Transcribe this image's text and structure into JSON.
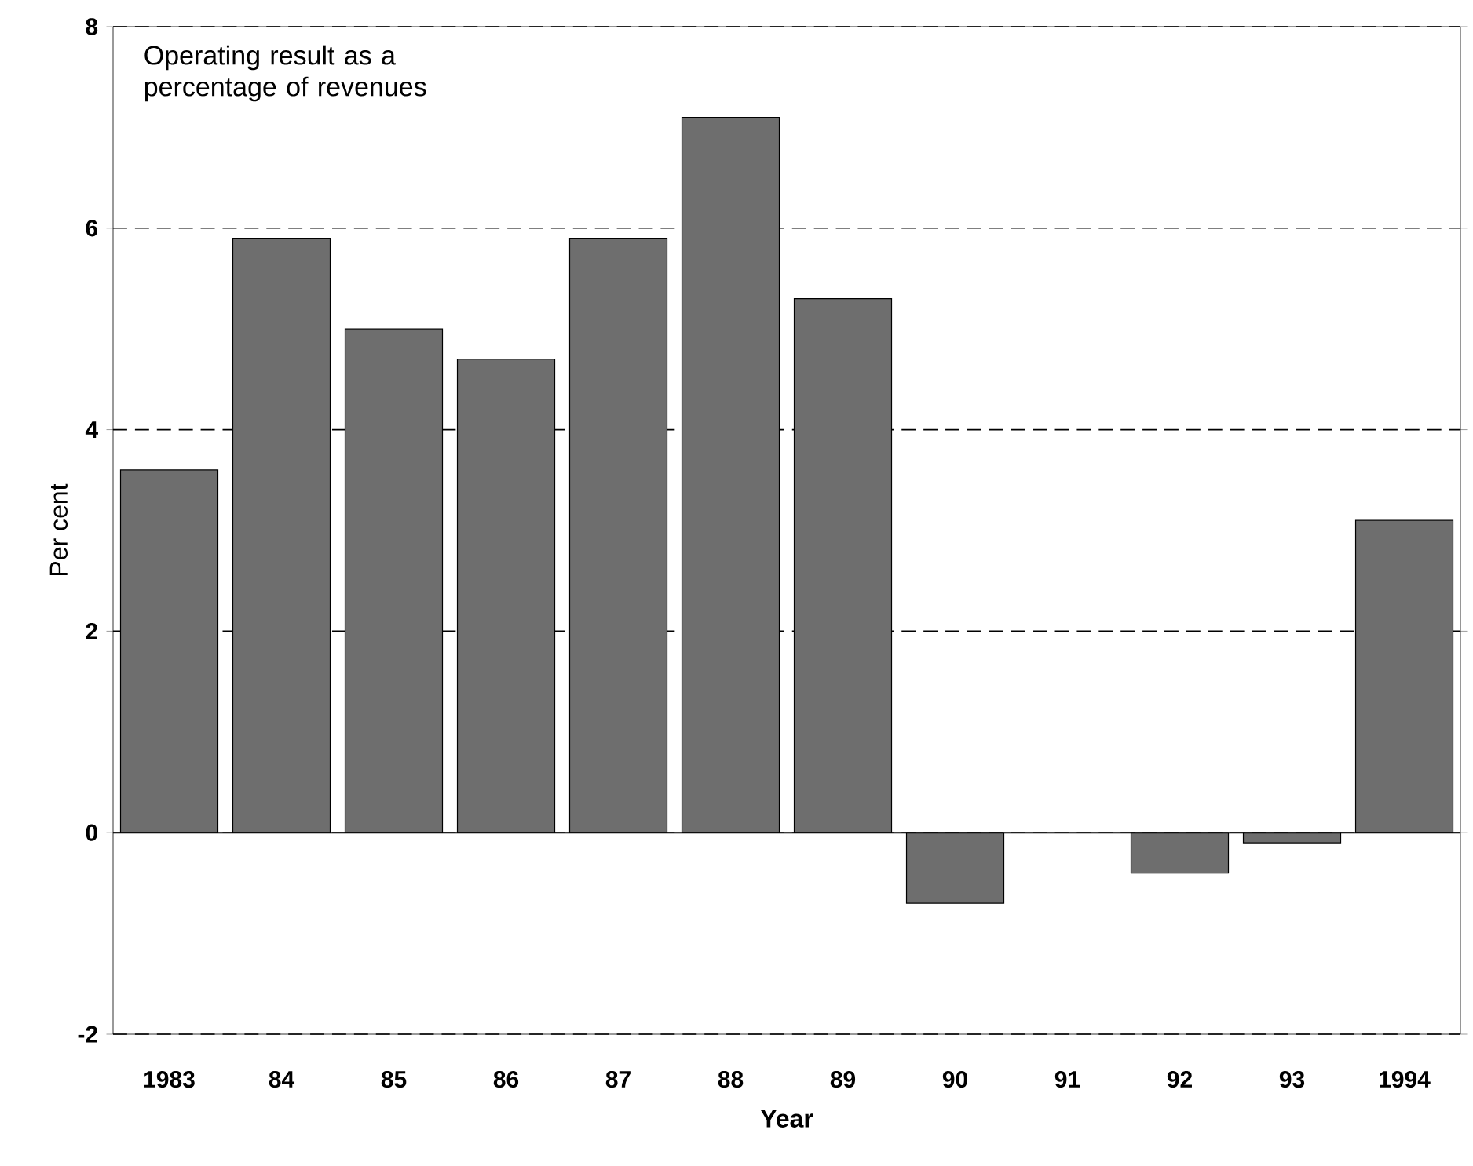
{
  "chart_data": {
    "type": "bar",
    "title": "Operating result as a percentage of revenues",
    "xlabel": "Year",
    "ylabel": "Per cent",
    "categories": [
      "1983",
      "84",
      "85",
      "86",
      "87",
      "88",
      "89",
      "90",
      "91",
      "92",
      "93",
      "1994"
    ],
    "values": [
      3.6,
      5.9,
      5.0,
      4.7,
      5.9,
      7.1,
      5.3,
      -0.7,
      null,
      -0.4,
      -0.1,
      3.1
    ],
    "color": "#6e6e6e",
    "ylim": [
      -2,
      8
    ],
    "yticks": [
      -2,
      0,
      2,
      4,
      6,
      8
    ],
    "grid": "y"
  }
}
